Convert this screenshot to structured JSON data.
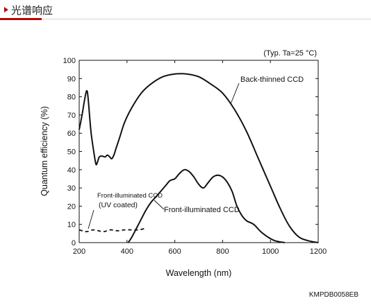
{
  "header": {
    "title": "光谱响应",
    "accent_color": "#c00000"
  },
  "figure_code": "KMPDB0058EB",
  "chart_data": {
    "type": "line",
    "annotation": "(Typ. Ta=25 °C)",
    "xlabel": "Wavelength (nm)",
    "ylabel": "Quantum efficiency (%)",
    "xlim": [
      200,
      1200
    ],
    "ylim": [
      0,
      100
    ],
    "x_ticks": [
      200,
      400,
      600,
      800,
      1000,
      1200
    ],
    "y_ticks": [
      0,
      10,
      20,
      30,
      40,
      50,
      60,
      70,
      80,
      90,
      100
    ],
    "grid": false,
    "series": [
      {
        "name": "Back-thinned CCD",
        "style": "solid",
        "points": [
          [
            200,
            62
          ],
          [
            212,
            70
          ],
          [
            222,
            78
          ],
          [
            230,
            83
          ],
          [
            235,
            82
          ],
          [
            240,
            75
          ],
          [
            250,
            60
          ],
          [
            262,
            49
          ],
          [
            270,
            43
          ],
          [
            276,
            44
          ],
          [
            284,
            47
          ],
          [
            295,
            47.5
          ],
          [
            308,
            47
          ],
          [
            318,
            48
          ],
          [
            328,
            47
          ],
          [
            336,
            46
          ],
          [
            345,
            48
          ],
          [
            355,
            52
          ],
          [
            370,
            58
          ],
          [
            390,
            66
          ],
          [
            420,
            74
          ],
          [
            460,
            82
          ],
          [
            500,
            87
          ],
          [
            550,
            91
          ],
          [
            600,
            92.5
          ],
          [
            650,
            92.5
          ],
          [
            700,
            91
          ],
          [
            750,
            87
          ],
          [
            800,
            82
          ],
          [
            850,
            73
          ],
          [
            900,
            61
          ],
          [
            950,
            46
          ],
          [
            1000,
            31
          ],
          [
            1040,
            19
          ],
          [
            1080,
            9
          ],
          [
            1120,
            3
          ],
          [
            1160,
            1
          ],
          [
            1200,
            0
          ]
        ]
      },
      {
        "name": "Front-illuminated CCD",
        "style": "solid",
        "points": [
          [
            405,
            0
          ],
          [
            420,
            3
          ],
          [
            440,
            8
          ],
          [
            460,
            13
          ],
          [
            480,
            18
          ],
          [
            500,
            22
          ],
          [
            520,
            25
          ],
          [
            540,
            28
          ],
          [
            560,
            31
          ],
          [
            580,
            34
          ],
          [
            600,
            35
          ],
          [
            620,
            38
          ],
          [
            640,
            40
          ],
          [
            660,
            39
          ],
          [
            680,
            36
          ],
          [
            700,
            32
          ],
          [
            720,
            30
          ],
          [
            740,
            33
          ],
          [
            760,
            36
          ],
          [
            780,
            37
          ],
          [
            800,
            36
          ],
          [
            820,
            33
          ],
          [
            840,
            28
          ],
          [
            860,
            20
          ],
          [
            880,
            15
          ],
          [
            900,
            12
          ],
          [
            930,
            10
          ],
          [
            960,
            6
          ],
          [
            990,
            3
          ],
          [
            1020,
            1
          ],
          [
            1060,
            0
          ]
        ]
      },
      {
        "name": "Front-illuminated CCD\n(UV coated)",
        "style": "dashed",
        "points": [
          [
            200,
            7
          ],
          [
            230,
            6
          ],
          [
            260,
            7
          ],
          [
            300,
            6
          ],
          [
            330,
            7
          ],
          [
            360,
            6.5
          ],
          [
            390,
            7
          ],
          [
            420,
            7
          ],
          [
            450,
            7
          ],
          [
            480,
            8
          ]
        ]
      }
    ],
    "labels": [
      {
        "text": "Back-thinned CCD"
      },
      {
        "text": "Front-illuminated CCD"
      },
      {
        "text": "Front-illuminated CCD"
      },
      {
        "text": "(UV coated)"
      }
    ]
  }
}
